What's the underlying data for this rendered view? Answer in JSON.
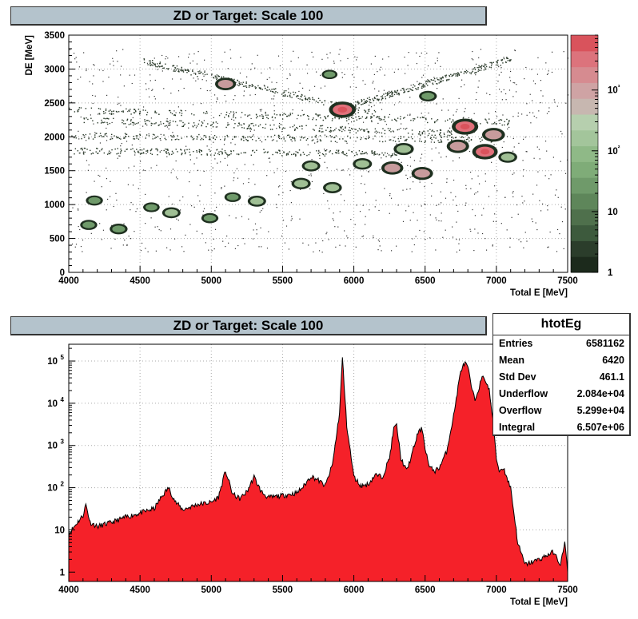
{
  "chart_data": [
    {
      "type": "heatmap",
      "title": "ZD or Target: Scale 100",
      "xlabel": "Total E [MeV]",
      "ylabel": "DE [MeV]",
      "xlim": [
        4000,
        7500
      ],
      "ylim": [
        0,
        3500
      ],
      "x_ticks": [
        "4000",
        "4500",
        "5000",
        "5500",
        "6000",
        "6500",
        "7000",
        "7500"
      ],
      "y_ticks": [
        "0",
        "500",
        "1000",
        "1500",
        "2000",
        "2500",
        "3000",
        "3500"
      ],
      "z_scale": "log",
      "z_ticks": [
        "1",
        "10",
        "10²",
        "10³"
      ],
      "grid": true,
      "colorbar": "right",
      "colors": {
        "low": "#1c2a1c",
        "mid": "#7ea977",
        "high": "#d9535c"
      },
      "bands": [
        {
          "x1": 4520,
          "y1": 3120,
          "x2": 6150,
          "y2": 2350
        },
        {
          "x1": 4000,
          "y1": 2400,
          "x2": 7100,
          "y2": 2220
        },
        {
          "x1": 4000,
          "y1": 2020,
          "x2": 7000,
          "y2": 1960
        },
        {
          "x1": 4000,
          "y1": 1800,
          "x2": 6300,
          "y2": 1760
        },
        {
          "x1": 4100,
          "y1": 2250,
          "x2": 6800,
          "y2": 2050
        },
        {
          "x1": 5900,
          "y1": 2420,
          "x2": 7100,
          "y2": 3150
        }
      ],
      "blobs": [
        {
          "x": 5920,
          "y": 2400,
          "z": 3000
        },
        {
          "x": 6780,
          "y": 2150,
          "z": 2500
        },
        {
          "x": 6920,
          "y": 1780,
          "z": 1500
        },
        {
          "x": 6980,
          "y": 2030,
          "z": 400
        },
        {
          "x": 6730,
          "y": 1860,
          "z": 300
        },
        {
          "x": 6270,
          "y": 1540,
          "z": 250
        },
        {
          "x": 6480,
          "y": 1460,
          "z": 200
        },
        {
          "x": 5100,
          "y": 2780,
          "z": 150
        },
        {
          "x": 6350,
          "y": 1820,
          "z": 100
        },
        {
          "x": 6060,
          "y": 1600,
          "z": 60
        },
        {
          "x": 5630,
          "y": 1310,
          "z": 60
        },
        {
          "x": 5850,
          "y": 1250,
          "z": 50
        },
        {
          "x": 5700,
          "y": 1570,
          "z": 40
        },
        {
          "x": 5320,
          "y": 1050,
          "z": 40
        },
        {
          "x": 4720,
          "y": 880,
          "z": 40
        },
        {
          "x": 4350,
          "y": 640,
          "z": 30
        },
        {
          "x": 4990,
          "y": 800,
          "z": 20
        },
        {
          "x": 4140,
          "y": 700,
          "z": 20
        },
        {
          "x": 4580,
          "y": 960,
          "z": 15
        },
        {
          "x": 5830,
          "y": 2920,
          "z": 10
        },
        {
          "x": 5150,
          "y": 1110,
          "z": 15
        },
        {
          "x": 6520,
          "y": 2600,
          "z": 30
        },
        {
          "x": 7080,
          "y": 1700,
          "z": 50
        },
        {
          "x": 4180,
          "y": 1060,
          "z": 20
        }
      ]
    },
    {
      "type": "area",
      "title": "ZD or Target: Scale 100",
      "xlabel": "Total E [MeV]",
      "ylabel": "",
      "xlim": [
        4000,
        7500
      ],
      "ylim": [
        0.6,
        250000
      ],
      "y_scale": "log",
      "x_ticks": [
        "4000",
        "4500",
        "5000",
        "5500",
        "6000",
        "6500",
        "7000",
        "7500"
      ],
      "grid": true,
      "fill_color": "#f52129",
      "x": [
        4000,
        4060,
        4100,
        4120,
        4150,
        4200,
        4300,
        4400,
        4500,
        4600,
        4650,
        4700,
        4750,
        4800,
        4900,
        5000,
        5050,
        5100,
        5150,
        5200,
        5250,
        5300,
        5350,
        5400,
        5500,
        5600,
        5650,
        5700,
        5750,
        5800,
        5850,
        5900,
        5920,
        5950,
        6000,
        6050,
        6100,
        6150,
        6200,
        6250,
        6280,
        6300,
        6330,
        6370,
        6400,
        6450,
        6480,
        6500,
        6530,
        6570,
        6600,
        6650,
        6700,
        6750,
        6780,
        6800,
        6830,
        6850,
        6880,
        6900,
        6920,
        6950,
        6980,
        7000,
        7020,
        7050,
        7080,
        7100,
        7120,
        7150,
        7200,
        7300,
        7400,
        7450,
        7480,
        7500
      ],
      "y": [
        8,
        15,
        22,
        40,
        15,
        12,
        15,
        20,
        25,
        32,
        60,
        100,
        45,
        30,
        40,
        45,
        60,
        250,
        70,
        55,
        80,
        180,
        80,
        58,
        65,
        75,
        110,
        190,
        150,
        110,
        350,
        6000,
        120000,
        3000,
        180,
        110,
        120,
        200,
        180,
        500,
        2500,
        3000,
        500,
        250,
        500,
        2000,
        2500,
        900,
        300,
        250,
        300,
        700,
        5000,
        60000,
        90000,
        70000,
        20000,
        12000,
        25000,
        40000,
        38000,
        20000,
        3000,
        500,
        250,
        300,
        150,
        100,
        30,
        5,
        1.5,
        2,
        3,
        1.5,
        5,
        1
      ]
    }
  ],
  "stats": {
    "name": "htotEg",
    "rows": [
      {
        "label": "Entries",
        "value": "6581162"
      },
      {
        "label": "Mean",
        "value": "6420"
      },
      {
        "label": "Std Dev",
        "value": "461.1"
      },
      {
        "label": "Underflow",
        "value": "2.084e+04"
      },
      {
        "label": "Overflow",
        "value": "5.299e+04"
      },
      {
        "label": "Integral",
        "value": "6.507e+06"
      }
    ]
  },
  "bottom_y_ticks": [
    {
      "value": 1,
      "label": "1"
    },
    {
      "value": 10,
      "label": "10"
    },
    {
      "value": 100,
      "label": "10",
      "sup": "2"
    },
    {
      "value": 1000,
      "label": "10",
      "sup": "3"
    },
    {
      "value": 10000,
      "label": "10",
      "sup": "4"
    },
    {
      "value": 100000,
      "label": "10",
      "sup": "5"
    }
  ]
}
